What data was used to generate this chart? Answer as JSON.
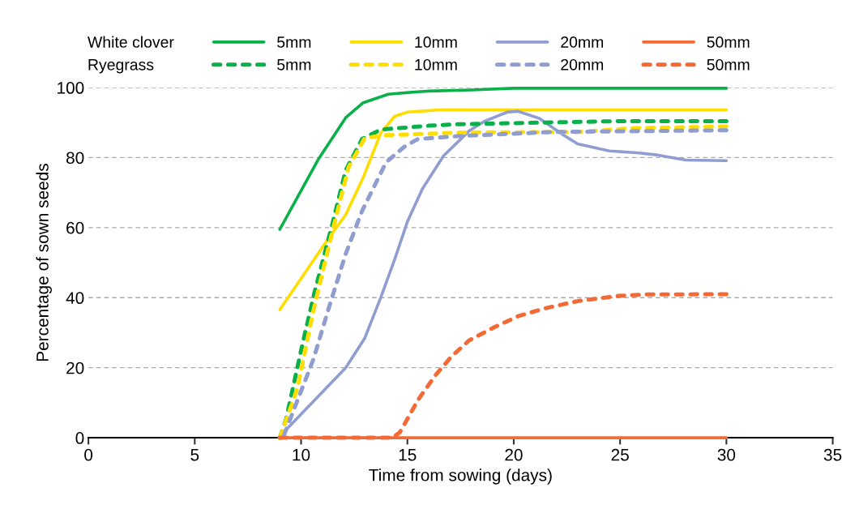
{
  "chart_data": {
    "type": "line",
    "xlabel": "Time from sowing (days)",
    "ylabel": "Percentage of sown seeds",
    "xlim": [
      0,
      35
    ],
    "xticks": [
      0,
      5,
      10,
      15,
      20,
      25,
      30,
      35
    ],
    "ylim": [
      0,
      100
    ],
    "yticks": [
      0,
      20,
      40,
      60,
      80,
      100
    ],
    "grid": "y",
    "legend": "top",
    "marker": "none",
    "annotations": [
      "White clover",
      "Ryegrass"
    ],
    "series": [
      {
        "name": "5mm",
        "color": "#0bb04b",
        "line_style": "solid",
        "x": [
          9,
          10.8,
          12.1,
          12.9,
          14.1,
          15.5,
          16,
          18,
          20,
          30
        ],
        "values": [
          59.5,
          79.4,
          91.4,
          95.6,
          98.1,
          98.8,
          99,
          99.3,
          99.8,
          99.8
        ]
      },
      {
        "name": "10mm",
        "color": "#ffdd00",
        "line_style": "solid",
        "x": [
          9,
          11.3,
          12.1,
          12.9,
          13.75,
          14.4,
          15,
          16.5,
          30
        ],
        "values": [
          36.6,
          57,
          63.7,
          74,
          87,
          91.8,
          93,
          93.6,
          93.6
        ]
      },
      {
        "name": "20mm",
        "color": "#8f9dd0",
        "line_style": "solid",
        "x": [
          9,
          12.1,
          13,
          13.75,
          14.4,
          15,
          15.7,
          16.7,
          17.9,
          18.6,
          19.7,
          20.2,
          21.2,
          22.3,
          23,
          24.5,
          25.9,
          26.8,
          28.1,
          30
        ],
        "values": [
          0.4,
          20,
          28.5,
          40.1,
          50.9,
          61.7,
          71,
          80.5,
          87.6,
          90.3,
          93,
          93.2,
          91.2,
          86.6,
          83.9,
          81.9,
          81.3,
          80.7,
          79.3,
          79.1
        ]
      },
      {
        "name": "50mm",
        "color": "#f26a36",
        "line_style": "solid",
        "x": [
          9,
          30
        ],
        "values": [
          0,
          0
        ]
      },
      {
        "name": "5mm",
        "color": "#0bb04b",
        "line_style": "dashed",
        "x": [
          9,
          9.3,
          10.07,
          10.64,
          11.47,
          12.1,
          12.87,
          13.75,
          16,
          17.3,
          20.5,
          24.9,
          30
        ],
        "values": [
          0,
          5.4,
          26.9,
          41.7,
          61,
          76.4,
          85.3,
          88,
          89.1,
          89.5,
          89.9,
          90.4,
          90.4
        ]
      },
      {
        "name": "10mm",
        "color": "#ffdd00",
        "line_style": "dashed",
        "x": [
          9,
          9.82,
          10.58,
          11.34,
          12.23,
          13,
          14,
          17.9,
          23,
          25.6,
          30
        ],
        "values": [
          0,
          13.9,
          36.3,
          55.6,
          77.2,
          85.6,
          86.4,
          87.2,
          87.3,
          88.4,
          88.9
        ]
      },
      {
        "name": "20mm",
        "color": "#8f9dd0",
        "line_style": "dashed",
        "x": [
          9.2,
          10.58,
          11.34,
          12.1,
          12.87,
          13.44,
          14,
          14.9,
          15.5,
          17.3,
          21.75,
          30
        ],
        "values": [
          0.8,
          22.4,
          37.8,
          52.5,
          64.8,
          71.8,
          78.7,
          83.3,
          85.3,
          86.1,
          87.3,
          87.8
        ]
      },
      {
        "name": "50mm",
        "color": "#f26a36",
        "line_style": "dashed",
        "x": [
          9,
          14.3,
          14.64,
          15.5,
          16.3,
          17.06,
          17.9,
          19.1,
          20.2,
          21.5,
          23,
          24.9,
          26.2,
          30
        ],
        "values": [
          0,
          0,
          1.5,
          10.8,
          17.7,
          23.1,
          27.8,
          31.6,
          34.7,
          37,
          39,
          40.5,
          40.9,
          41
        ]
      }
    ]
  }
}
